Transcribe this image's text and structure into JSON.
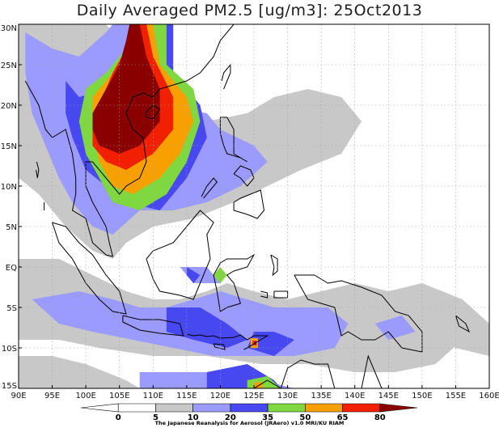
{
  "title": "Daily Averaged PM2.5 [ug/m3]: 25Oct2013",
  "credit": "The Japanese Reanalysis for Aerosol (JRAero) v1.0 MRI/KU RIAM",
  "map": {
    "lon_range": [
      90,
      160
    ],
    "lat_range": [
      -15,
      30
    ],
    "lon_ticks": [
      {
        "value": 90,
        "label": "90E"
      },
      {
        "value": 95,
        "label": "95E"
      },
      {
        "value": 100,
        "label": "100E"
      },
      {
        "value": 105,
        "label": "105E"
      },
      {
        "value": 110,
        "label": "110E"
      },
      {
        "value": 115,
        "label": "115E"
      },
      {
        "value": 120,
        "label": "120E"
      },
      {
        "value": 125,
        "label": "125E"
      },
      {
        "value": 130,
        "label": "130E"
      },
      {
        "value": 135,
        "label": "135E"
      },
      {
        "value": 140,
        "label": "140E"
      },
      {
        "value": 145,
        "label": "145E"
      },
      {
        "value": 150,
        "label": "150E"
      },
      {
        "value": 155,
        "label": "155E"
      },
      {
        "value": 160,
        "label": "160E"
      }
    ],
    "lat_ticks": [
      {
        "value": 30,
        "label": "30N"
      },
      {
        "value": 25,
        "label": "25N"
      },
      {
        "value": 20,
        "label": "20N"
      },
      {
        "value": 15,
        "label": "15N"
      },
      {
        "value": 10,
        "label": "10N"
      },
      {
        "value": 5,
        "label": "5N"
      },
      {
        "value": 0,
        "label": "EQ"
      },
      {
        "value": -5,
        "label": "5S"
      },
      {
        "value": -10,
        "label": "10S"
      },
      {
        "value": -15,
        "label": "15S"
      }
    ],
    "grid": true
  },
  "colorbar": {
    "levels": [
      "0",
      "5",
      "10",
      "20",
      "35",
      "50",
      "65",
      "80"
    ],
    "colors": [
      "#ffffff",
      "#ffffff",
      "#c8c8c8",
      "#9a9aff",
      "#4848f0",
      "#80d840",
      "#f8a000",
      "#f02000",
      "#8a0000"
    ]
  },
  "colors": {
    "very_high": "#8a0000",
    "high": "#f02000",
    "elevated": "#f8a000",
    "moderate": "#80d840",
    "medium": "#4848f0",
    "low": "#9a9aff",
    "background": "#c8c8c8",
    "coast": "#000000"
  }
}
